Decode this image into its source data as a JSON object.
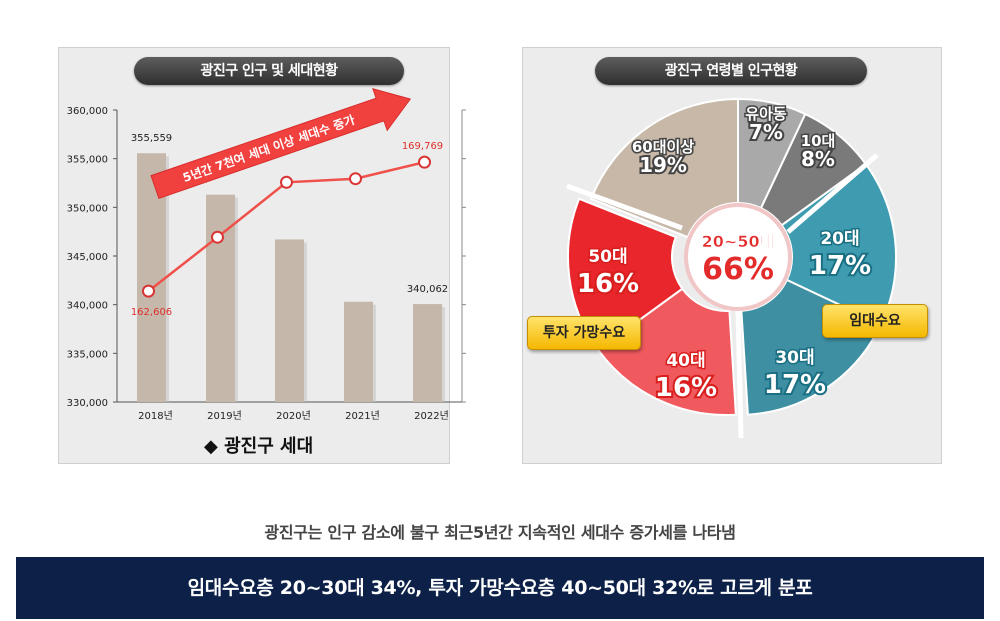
{
  "left_title": "광진구 인구 및 세대현황",
  "right_title": "광진구 연령별 인구현황",
  "arrow_label": "5년간 7천여 세대 이상 세대수 증가",
  "legend_label": "◆  광진구 세대",
  "caption": "광진구는 인구 감소에 불구 최근5년간 지속적인 세대수 증가세를 나타냄",
  "banner": "임대수요층 20~30대 34%, 투자 가망수요층 40~50대 32%로 고르게 분포",
  "tags": {
    "invest": "투자 가망수요",
    "rent": "임대수요"
  },
  "center_label": {
    "top": "20~50대",
    "value": "66%"
  },
  "colors": {
    "bar": "#c5b8aa",
    "line": "#f0504a",
    "banner": "#0d2148"
  },
  "chart_data": [
    {
      "type": "bar",
      "categories": [
        "2018년",
        "2019년",
        "2020년",
        "2021년",
        "2022년"
      ],
      "y_ticks": [
        "330,000",
        "335,000",
        "340,000",
        "345,000",
        "350,000",
        "355,000",
        "360,000"
      ],
      "ylim": [
        330000,
        360000
      ],
      "series": [
        {
          "name": "광진구 세대",
          "type": "bar",
          "values": [
            355559,
            351300,
            346700,
            340300,
            340062
          ]
        },
        {
          "name": "광진구 세대",
          "type": "line",
          "values": [
            162606,
            165600,
            168650,
            168850,
            169769
          ]
        }
      ],
      "bar_labels": [
        {
          "index": 0,
          "text": "355,559"
        },
        {
          "index": 4,
          "text": "340,062"
        }
      ],
      "line_labels": [
        {
          "index": 0,
          "text": "162,606"
        },
        {
          "index": 4,
          "text": "169,769"
        }
      ]
    },
    {
      "type": "pie",
      "slices": [
        {
          "label": "유아동",
          "value": 7,
          "text": "7%",
          "color": "#a9a9a9"
        },
        {
          "label": "10대",
          "value": 8,
          "text": "8%",
          "color": "#7a7a7a"
        },
        {
          "label": "20대",
          "value": 17,
          "text": "17%",
          "color": "#3f9cb0"
        },
        {
          "label": "30대",
          "value": 17,
          "text": "17%",
          "color": "#3e8fa2"
        },
        {
          "label": "40대",
          "value": 16,
          "text": "16%",
          "color": "#f05a5f"
        },
        {
          "label": "50대",
          "value": 16,
          "text": "16%",
          "color": "#e8262b"
        },
        {
          "label": "60대이상",
          "value": 19,
          "text": "19%",
          "color": "#c8b8a8"
        }
      ]
    }
  ]
}
